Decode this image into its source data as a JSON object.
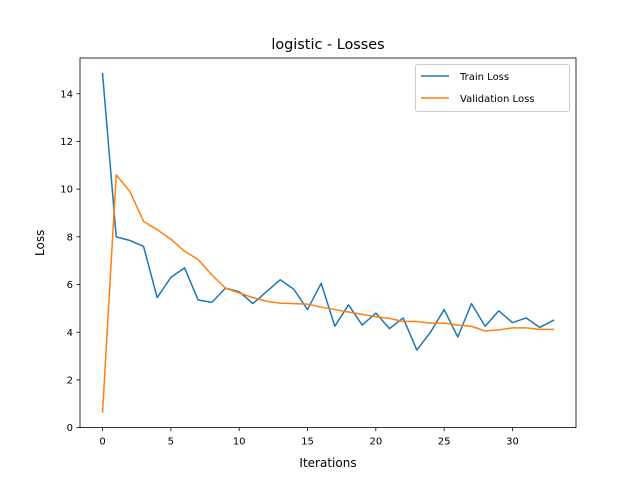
{
  "chart_data": {
    "type": "line",
    "title": "logistic - Losses",
    "xlabel": "Iterations",
    "ylabel": "Loss",
    "xlim": [
      -1.65,
      34.65
    ],
    "ylim": [
      0,
      15.5
    ],
    "xticks": [
      0,
      5,
      10,
      15,
      20,
      25,
      30
    ],
    "yticks": [
      0,
      2,
      4,
      6,
      8,
      10,
      12,
      14
    ],
    "grid": false,
    "legend_position": "top-right",
    "series": [
      {
        "name": "Train Loss",
        "color": "#1f77b4",
        "x": [
          0,
          1,
          2,
          3,
          4,
          5,
          6,
          7,
          8,
          9,
          10,
          11,
          12,
          13,
          14,
          15,
          16,
          17,
          18,
          19,
          20,
          21,
          22,
          23,
          24,
          25,
          26,
          27,
          28,
          29,
          30,
          31,
          32,
          33
        ],
        "values": [
          14.85,
          8.0,
          7.85,
          7.6,
          5.45,
          6.3,
          6.7,
          5.35,
          5.25,
          5.85,
          5.7,
          5.2,
          5.7,
          6.2,
          5.8,
          4.95,
          6.05,
          4.25,
          5.15,
          4.3,
          4.8,
          4.15,
          4.6,
          3.25,
          4.0,
          4.95,
          3.8,
          5.2,
          4.25,
          4.9,
          4.4,
          4.6,
          4.2,
          4.5
        ]
      },
      {
        "name": "Validation Loss",
        "color": "#ff7f0e",
        "x": [
          0,
          1,
          2,
          3,
          4,
          5,
          6,
          7,
          8,
          9,
          10,
          11,
          12,
          13,
          14,
          15,
          16,
          17,
          18,
          19,
          20,
          21,
          22,
          23,
          24,
          25,
          26,
          27,
          28,
          29,
          30,
          31,
          32,
          33
        ],
        "values": [
          0.65,
          10.6,
          9.9,
          8.65,
          8.3,
          7.9,
          7.4,
          7.05,
          6.4,
          5.85,
          5.65,
          5.45,
          5.3,
          5.22,
          5.2,
          5.18,
          5.05,
          4.95,
          4.85,
          4.75,
          4.65,
          4.58,
          4.45,
          4.45,
          4.38,
          4.38,
          4.3,
          4.25,
          4.05,
          4.1,
          4.18,
          4.18,
          4.12,
          4.12
        ]
      }
    ]
  }
}
